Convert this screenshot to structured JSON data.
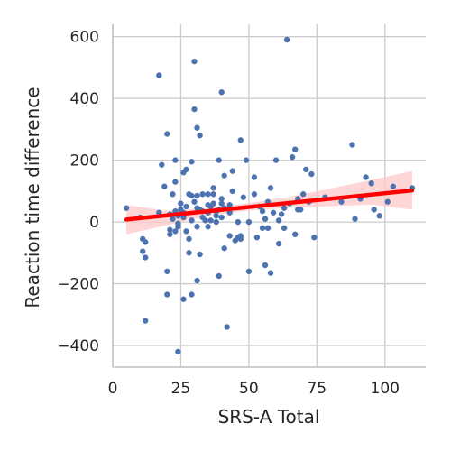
{
  "chart_data": {
    "type": "scatter",
    "title": "",
    "xlabel": "SRS-A Total",
    "ylabel": "Reaction time difference",
    "xlim": [
      0,
      115
    ],
    "ylim": [
      -470,
      640
    ],
    "x_ticks": [
      0,
      25,
      50,
      75,
      100
    ],
    "y_ticks": [
      -400,
      -200,
      0,
      200,
      400,
      600
    ],
    "x_tick_labels": [
      "0",
      "25",
      "50",
      "75",
      "100"
    ],
    "y_tick_labels": [
      "−400",
      "−200",
      "0",
      "200",
      "400",
      "600"
    ],
    "grid": true,
    "point_color": "#4c72b0",
    "regression_color": "#ff0000",
    "band_color": "#ffc8c8",
    "regression": {
      "x": [
        5,
        110
      ],
      "y": [
        8,
        102
      ]
    },
    "confidence_band": {
      "x": [
        5,
        20,
        35,
        50,
        65,
        80,
        95,
        110
      ],
      "upper": [
        55,
        36,
        45,
        61,
        82,
        108,
        136,
        165
      ],
      "lower": [
        -40,
        -10,
        20,
        37,
        46,
        51,
        56,
        40
      ]
    },
    "points": [
      [
        5,
        45
      ],
      [
        10,
        15
      ],
      [
        11,
        -55
      ],
      [
        12,
        -65
      ],
      [
        12,
        -115
      ],
      [
        11,
        -95
      ],
      [
        12,
        -320
      ],
      [
        17,
        475
      ],
      [
        17,
        30
      ],
      [
        18,
        185
      ],
      [
        19,
        115
      ],
      [
        20,
        285
      ],
      [
        20,
        -160
      ],
      [
        20,
        -235
      ],
      [
        21,
        25
      ],
      [
        21,
        -25
      ],
      [
        21,
        -40
      ],
      [
        22,
        90
      ],
      [
        22,
        10
      ],
      [
        23,
        200
      ],
      [
        23,
        130
      ],
      [
        23,
        35
      ],
      [
        23,
        -30
      ],
      [
        24,
        20
      ],
      [
        24,
        -5
      ],
      [
        24,
        -15
      ],
      [
        24,
        -420
      ],
      [
        25,
        60
      ],
      [
        25,
        40
      ],
      [
        26,
        160
      ],
      [
        26,
        30
      ],
      [
        26,
        15
      ],
      [
        26,
        -250
      ],
      [
        27,
        170
      ],
      [
        27,
        50
      ],
      [
        27,
        -30
      ],
      [
        28,
        90
      ],
      [
        28,
        -55
      ],
      [
        28,
        -100
      ],
      [
        29,
        195
      ],
      [
        29,
        85
      ],
      [
        29,
        5
      ],
      [
        29,
        -235
      ],
      [
        30,
        520
      ],
      [
        30,
        365
      ],
      [
        30,
        65
      ],
      [
        31,
        305
      ],
      [
        31,
        85
      ],
      [
        31,
        45
      ],
      [
        31,
        -15
      ],
      [
        31,
        -190
      ],
      [
        32,
        280
      ],
      [
        32,
        40
      ],
      [
        32,
        -105
      ],
      [
        33,
        90
      ],
      [
        33,
        35
      ],
      [
        33,
        15
      ],
      [
        34,
        5
      ],
      [
        35,
        90
      ],
      [
        35,
        55
      ],
      [
        35,
        30
      ],
      [
        35,
        -15
      ],
      [
        36,
        50
      ],
      [
        36,
        5
      ],
      [
        37,
        110
      ],
      [
        37,
        90
      ],
      [
        37,
        60
      ],
      [
        38,
        35
      ],
      [
        38,
        20
      ],
      [
        38,
        0
      ],
      [
        39,
        200
      ],
      [
        39,
        40
      ],
      [
        39,
        -175
      ],
      [
        40,
        420
      ],
      [
        40,
        75
      ],
      [
        40,
        60
      ],
      [
        40,
        15
      ],
      [
        41,
        150
      ],
      [
        41,
        45
      ],
      [
        41,
        -85
      ],
      [
        42,
        -340
      ],
      [
        43,
        55
      ],
      [
        43,
        30
      ],
      [
        43,
        -45
      ],
      [
        44,
        165
      ],
      [
        44,
        100
      ],
      [
        45,
        -60
      ],
      [
        46,
        0
      ],
      [
        46,
        -50
      ],
      [
        47,
        265
      ],
      [
        47,
        -45
      ],
      [
        47,
        -55
      ],
      [
        48,
        80
      ],
      [
        49,
        200
      ],
      [
        50,
        0
      ],
      [
        50,
        -160
      ],
      [
        52,
        145
      ],
      [
        52,
        90
      ],
      [
        53,
        -50
      ],
      [
        54,
        50
      ],
      [
        55,
        35
      ],
      [
        55,
        -20
      ],
      [
        56,
        10
      ],
      [
        56,
        -140
      ],
      [
        57,
        65
      ],
      [
        57,
        -20
      ],
      [
        58,
        110
      ],
      [
        58,
        -165
      ],
      [
        59,
        30
      ],
      [
        60,
        200
      ],
      [
        61,
        5
      ],
      [
        61,
        -70
      ],
      [
        62,
        25
      ],
      [
        63,
        45
      ],
      [
        63,
        -20
      ],
      [
        64,
        590
      ],
      [
        65,
        60
      ],
      [
        66,
        210
      ],
      [
        67,
        235
      ],
      [
        67,
        -40
      ],
      [
        68,
        40
      ],
      [
        68,
        75
      ],
      [
        69,
        40
      ],
      [
        70,
        90
      ],
      [
        71,
        170
      ],
      [
        72,
        65
      ],
      [
        73,
        155
      ],
      [
        74,
        -50
      ],
      [
        78,
        80
      ],
      [
        84,
        65
      ],
      [
        88,
        250
      ],
      [
        89,
        10
      ],
      [
        91,
        75
      ],
      [
        93,
        145
      ],
      [
        95,
        125
      ],
      [
        96,
        40
      ],
      [
        98,
        20
      ],
      [
        101,
        65
      ],
      [
        103,
        115
      ],
      [
        110,
        110
      ]
    ]
  }
}
